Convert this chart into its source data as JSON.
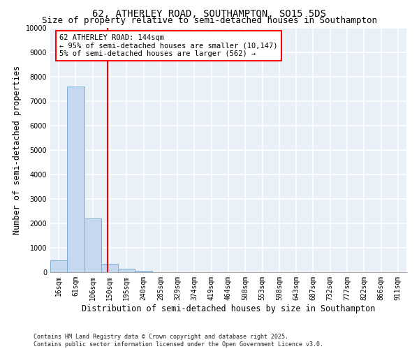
{
  "title": "62, ATHERLEY ROAD, SOUTHAMPTON, SO15 5DS",
  "subtitle": "Size of property relative to semi-detached houses in Southampton",
  "xlabel": "Distribution of semi-detached houses by size in Southampton",
  "ylabel": "Number of semi-detached properties",
  "categories": [
    "16sqm",
    "61sqm",
    "106sqm",
    "150sqm",
    "195sqm",
    "240sqm",
    "285sqm",
    "329sqm",
    "374sqm",
    "419sqm",
    "464sqm",
    "508sqm",
    "553sqm",
    "598sqm",
    "643sqm",
    "687sqm",
    "732sqm",
    "777sqm",
    "822sqm",
    "866sqm",
    "911sqm"
  ],
  "values": [
    500,
    7600,
    2200,
    350,
    150,
    50,
    10,
    5,
    5,
    5,
    5,
    5,
    5,
    5,
    0,
    0,
    0,
    0,
    0,
    0,
    0
  ],
  "bar_color": "#c5d8f0",
  "bar_edge_color": "#7aafd4",
  "background_color": "#eaf0f8",
  "grid_color": "#ffffff",
  "red_line_x": 2.87,
  "annotation_text": "62 ATHERLEY ROAD: 144sqm\n← 95% of semi-detached houses are smaller (10,147)\n5% of semi-detached houses are larger (562) →",
  "ylim": [
    0,
    10000
  ],
  "yticks": [
    0,
    1000,
    2000,
    3000,
    4000,
    5000,
    6000,
    7000,
    8000,
    9000,
    10000
  ],
  "footer": "Contains HM Land Registry data © Crown copyright and database right 2025.\nContains public sector information licensed under the Open Government Licence v3.0.",
  "title_fontsize": 10,
  "subtitle_fontsize": 9,
  "axis_label_fontsize": 8.5,
  "tick_fontsize": 7,
  "annotation_fontsize": 7.5,
  "footer_fontsize": 6
}
